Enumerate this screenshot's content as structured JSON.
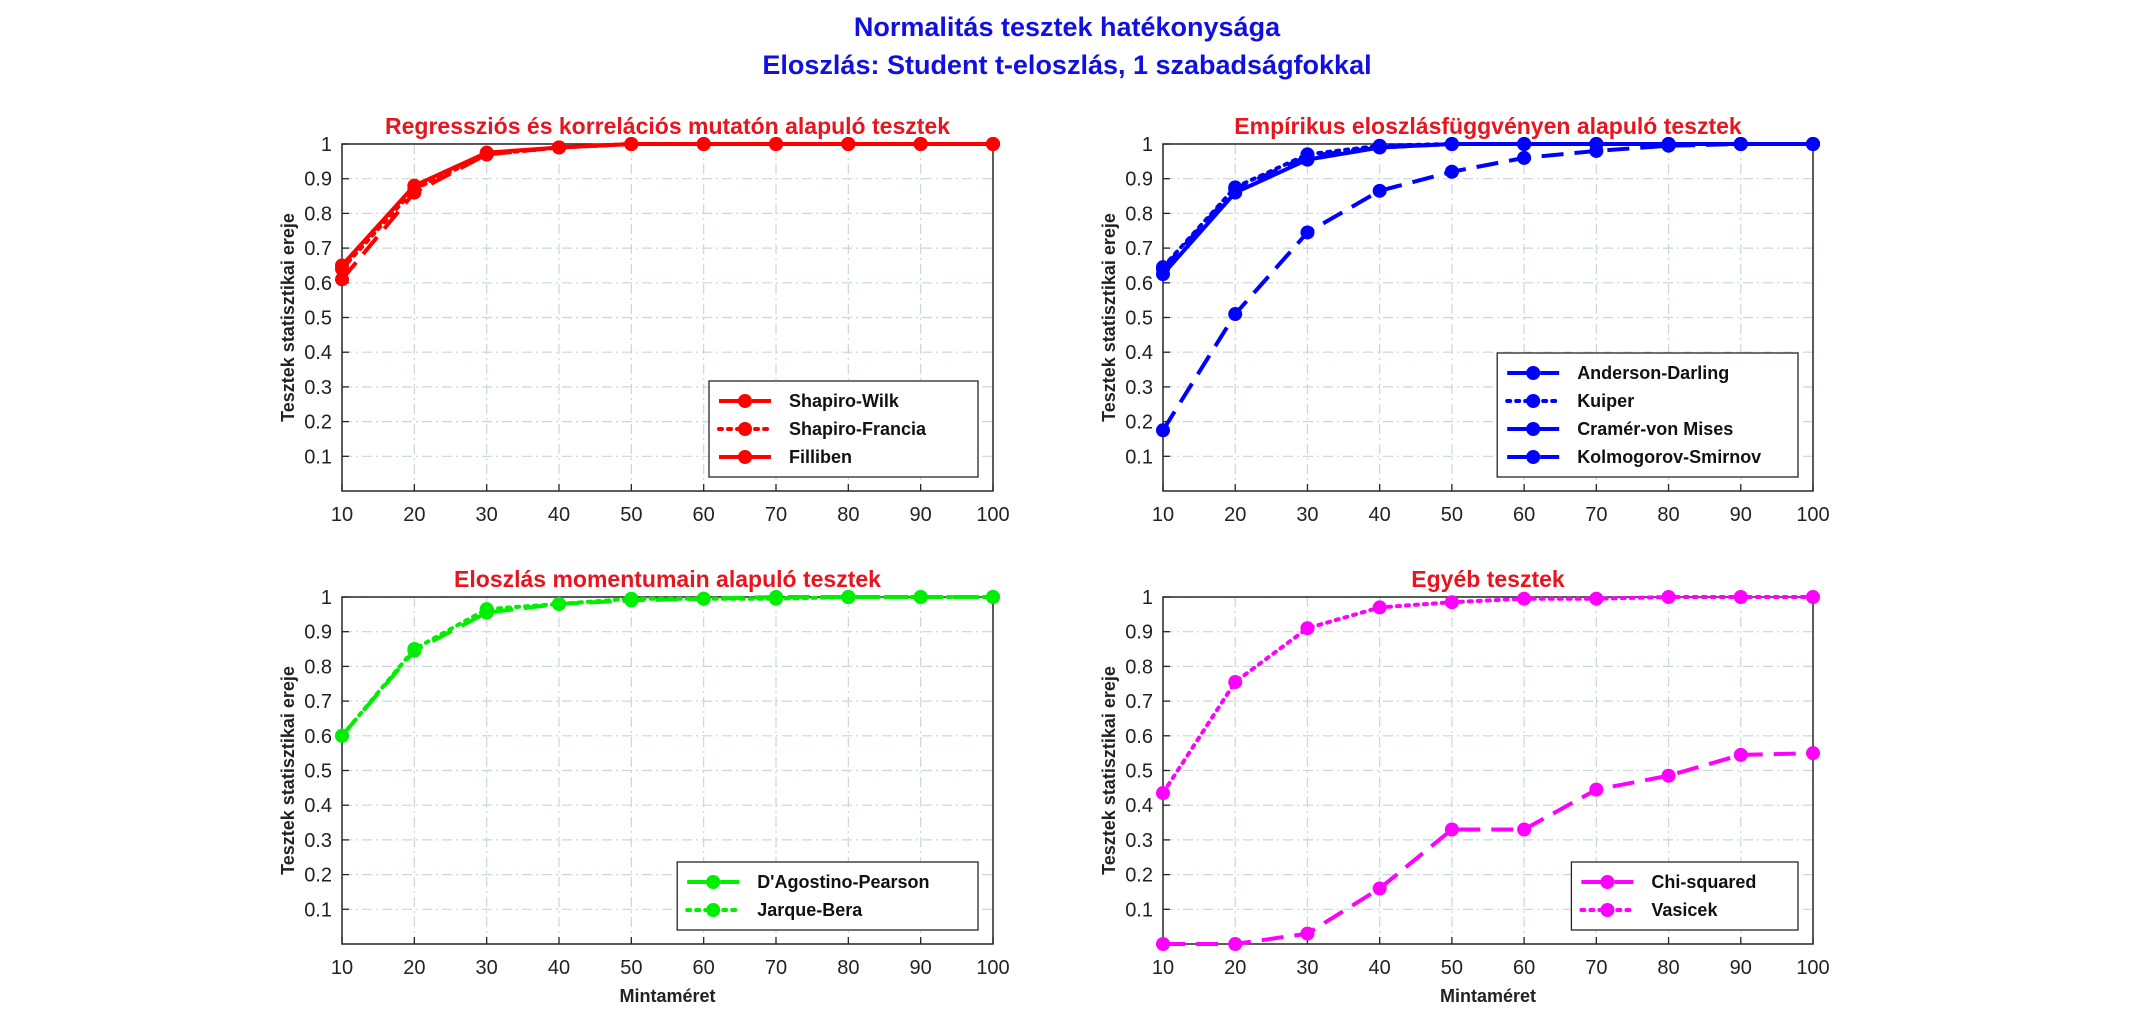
{
  "figure": {
    "title_line1": "Normalitás tesztek hatékonysága",
    "title_line2": "Eloszlás: Student t-eloszlás, 1 szabadságfokkal"
  },
  "chart_data": [
    {
      "type": "line",
      "title": "Regressziós és korrelációs mutatón alapuló tesztek",
      "xlabel": "",
      "ylabel": "Tesztek statisztikai ereje",
      "x": [
        10,
        20,
        30,
        40,
        50,
        60,
        70,
        80,
        90,
        100
      ],
      "xlim": [
        10,
        100
      ],
      "ylim": [
        0,
        1
      ],
      "grid": true,
      "legend_position": "bottom-right",
      "color": "#ff0000",
      "series": [
        {
          "name": "Shapiro-Wilk",
          "style": "dashed",
          "values": [
            0.61,
            0.86,
            0.97,
            0.99,
            1.0,
            1.0,
            1.0,
            1.0,
            1.0,
            1.0
          ]
        },
        {
          "name": "Shapiro-Francia",
          "style": "dotted",
          "values": [
            0.64,
            0.87,
            0.97,
            0.99,
            1.0,
            1.0,
            1.0,
            1.0,
            1.0,
            1.0
          ]
        },
        {
          "name": "Filliben",
          "style": "solid",
          "values": [
            0.65,
            0.88,
            0.975,
            0.99,
            1.0,
            1.0,
            1.0,
            1.0,
            1.0,
            1.0
          ]
        }
      ]
    },
    {
      "type": "line",
      "title": "Empírikus eloszlásfüggvényen alapuló tesztek",
      "xlabel": "",
      "ylabel": "Tesztek statisztikai ereje",
      "x": [
        10,
        20,
        30,
        40,
        50,
        60,
        70,
        80,
        90,
        100
      ],
      "xlim": [
        10,
        100
      ],
      "ylim": [
        0,
        1
      ],
      "grid": true,
      "legend_position": "bottom-right",
      "color": "#0000ff",
      "series": [
        {
          "name": "Anderson-Darling",
          "style": "dashed",
          "values": [
            0.64,
            0.87,
            0.965,
            0.99,
            1.0,
            1.0,
            1.0,
            1.0,
            1.0,
            1.0
          ]
        },
        {
          "name": "Kuiper",
          "style": "dotted",
          "values": [
            0.645,
            0.875,
            0.97,
            0.995,
            1.0,
            1.0,
            1.0,
            1.0,
            1.0,
            1.0
          ]
        },
        {
          "name": "Cramér-von Mises",
          "style": "solid",
          "values": [
            0.625,
            0.86,
            0.955,
            0.99,
            1.0,
            1.0,
            1.0,
            1.0,
            1.0,
            1.0
          ]
        },
        {
          "name": "Kolmogorov-Smirnov",
          "style": "dashed",
          "values": [
            0.175,
            0.51,
            0.745,
            0.865,
            0.92,
            0.96,
            0.98,
            0.995,
            1.0,
            1.0
          ]
        }
      ]
    },
    {
      "type": "line",
      "title": "Eloszlás momentumain alapuló tesztek",
      "xlabel": "Mintaméret",
      "ylabel": "Tesztek statisztikai ereje",
      "x": [
        10,
        20,
        30,
        40,
        50,
        60,
        70,
        80,
        90,
        100
      ],
      "xlim": [
        10,
        100
      ],
      "ylim": [
        0,
        1
      ],
      "grid": true,
      "legend_position": "bottom-right",
      "color": "#00ee00",
      "series": [
        {
          "name": "D'Agostino-Pearson",
          "style": "dashed",
          "values": [
            0.6,
            0.845,
            0.955,
            0.98,
            0.99,
            0.995,
            1.0,
            1.0,
            1.0,
            1.0
          ]
        },
        {
          "name": "Jarque-Bera",
          "style": "dotted",
          "values": [
            0.6,
            0.85,
            0.965,
            0.98,
            0.995,
            0.995,
            0.995,
            1.0,
            1.0,
            1.0
          ]
        }
      ]
    },
    {
      "type": "line",
      "title": "Egyéb tesztek",
      "xlabel": "Mintaméret",
      "ylabel": "Tesztek statisztikai ereje",
      "x": [
        10,
        20,
        30,
        40,
        50,
        60,
        70,
        80,
        90,
        100
      ],
      "xlim": [
        10,
        100
      ],
      "ylim": [
        0,
        1
      ],
      "grid": true,
      "legend_position": "bottom-right",
      "color": "#ff00ff",
      "series": [
        {
          "name": "Chi-squared",
          "style": "dashed",
          "values": [
            0.0,
            0.0,
            0.03,
            0.16,
            0.33,
            0.33,
            0.445,
            0.485,
            0.545,
            0.55
          ]
        },
        {
          "name": "Vasicek",
          "style": "dotted",
          "values": [
            0.435,
            0.755,
            0.91,
            0.97,
            0.985,
            0.995,
            0.995,
            1.0,
            1.0,
            1.0
          ]
        }
      ]
    }
  ]
}
